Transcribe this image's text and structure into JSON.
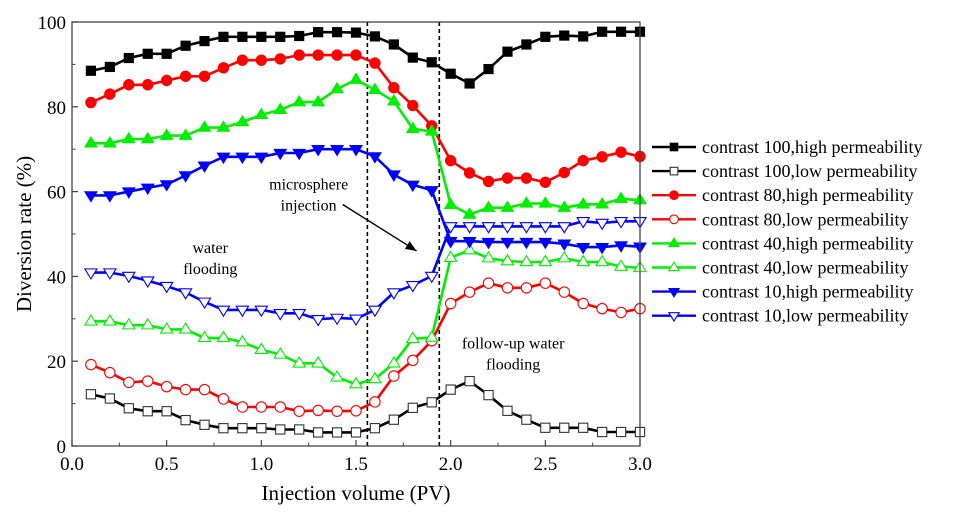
{
  "chart_data": {
    "type": "line",
    "title": "",
    "xlabel": "Injection volume (PV)",
    "ylabel": "Diversion rate (%)",
    "xlim": [
      0.0,
      3.0
    ],
    "ylim": [
      0,
      100
    ],
    "xticks": [
      "0.0",
      "0.5",
      "1.0",
      "1.5",
      "2.0",
      "2.5",
      "3.0"
    ],
    "xtick_values": [
      0.0,
      0.5,
      1.0,
      1.5,
      2.0,
      2.5,
      3.0
    ],
    "yticks": [
      "0",
      "20",
      "40",
      "60",
      "80",
      "100"
    ],
    "ytick_values": [
      0,
      20,
      40,
      60,
      80,
      100
    ],
    "grid": false,
    "legend_position": "right-outside",
    "x": [
      0.1,
      0.2,
      0.3,
      0.4,
      0.5,
      0.6,
      0.7,
      0.8,
      0.9,
      1.0,
      1.1,
      1.2,
      1.3,
      1.4,
      1.5,
      1.6,
      1.7,
      1.8,
      1.9,
      2.0,
      2.1,
      2.2,
      2.3,
      2.4,
      2.5,
      2.6,
      2.7,
      2.8,
      2.9,
      3.0
    ],
    "series": [
      {
        "name": "contrast 100,high permeability",
        "color": "#000000",
        "marker": "square",
        "filled": true,
        "values": [
          88.5,
          89.4,
          91.5,
          92.5,
          92.5,
          94.4,
          95.5,
          96.5,
          96.5,
          96.5,
          96.5,
          96.7,
          97.6,
          97.6,
          97.5,
          96.6,
          94.7,
          91.6,
          90.5,
          87.8,
          85.5,
          88.9,
          93.0,
          94.7,
          96.5,
          96.8,
          96.6,
          97.7,
          97.7,
          97.7
        ]
      },
      {
        "name": "contrast 100,low permeability",
        "color": "#000000",
        "marker": "square",
        "filled": false,
        "values": [
          12.2,
          11.2,
          8.9,
          8.2,
          8.2,
          6.1,
          5.0,
          4.2,
          4.2,
          4.2,
          3.9,
          3.9,
          3.2,
          3.2,
          3.2,
          4.2,
          6.2,
          9.0,
          10.3,
          13.3,
          15.3,
          12.0,
          8.3,
          6.2,
          4.3,
          4.3,
          4.3,
          3.3,
          3.3,
          3.3
        ]
      },
      {
        "name": "contrast 80,high permeability",
        "color": "#ff0000",
        "marker": "circle",
        "filled": true,
        "values": [
          81.0,
          83.0,
          85.2,
          85.2,
          86.2,
          87.2,
          87.2,
          89.2,
          91.0,
          91.0,
          91.3,
          92.2,
          92.2,
          92.2,
          92.2,
          90.3,
          84.5,
          80.3,
          75.5,
          67.3,
          64.4,
          62.4,
          63.2,
          63.2,
          62.2,
          64.5,
          67.3,
          68.2,
          69.3,
          68.3
        ]
      },
      {
        "name": "contrast 80,low permeability",
        "color": "#ff0000",
        "marker": "circle",
        "filled": false,
        "values": [
          19.2,
          17.3,
          15.0,
          15.3,
          14.0,
          13.3,
          13.3,
          11.1,
          9.2,
          9.2,
          9.2,
          8.2,
          8.4,
          8.2,
          8.3,
          10.4,
          16.5,
          20.2,
          24.8,
          33.6,
          36.3,
          38.4,
          37.3,
          37.3,
          38.4,
          36.3,
          33.6,
          32.4,
          31.5,
          32.4
        ]
      },
      {
        "name": "contrast 40,high permeability",
        "color": "#00ee00",
        "marker": "triangle-up",
        "filled": true,
        "values": [
          71.4,
          71.4,
          72.4,
          72.4,
          73.2,
          73.2,
          75.1,
          75.1,
          76.4,
          78.1,
          79.3,
          81.1,
          81.1,
          84.2,
          86.4,
          84.0,
          81.3,
          74.8,
          74.2,
          56.9,
          54.6,
          56.2,
          56.2,
          57.2,
          57.2,
          56.2,
          57.0,
          57.0,
          58.3,
          58.0
        ]
      },
      {
        "name": "contrast 40,low permeability",
        "color": "#00ee00",
        "marker": "triangle-up",
        "filled": false,
        "values": [
          29.4,
          29.4,
          28.5,
          28.5,
          27.5,
          27.5,
          25.5,
          25.5,
          24.5,
          22.7,
          21.6,
          19.5,
          19.5,
          16.2,
          14.6,
          15.8,
          19.5,
          25.3,
          25.6,
          44.4,
          46.2,
          44.3,
          43.6,
          43.4,
          43.4,
          44.3,
          43.4,
          43.4,
          42.3,
          42.0
        ]
      },
      {
        "name": "contrast 10,high permeability",
        "color": "#0000ff",
        "marker": "triangle-down",
        "filled": true,
        "values": [
          59.1,
          59.1,
          60.0,
          60.9,
          61.7,
          63.8,
          66.1,
          68.2,
          68.2,
          68.2,
          69.1,
          69.1,
          70.0,
          70.0,
          70.0,
          68.3,
          64.0,
          61.6,
          60.3,
          48.3,
          48.3,
          48.1,
          48.1,
          48.1,
          48.1,
          47.7,
          46.9,
          46.9,
          47.3,
          47.0
        ]
      },
      {
        "name": "contrast 10,low permeability",
        "color": "#0000ff",
        "marker": "triangle-down",
        "filled": false,
        "values": [
          40.9,
          40.9,
          40.1,
          39.0,
          37.7,
          36.2,
          34.0,
          32.1,
          32.1,
          32.1,
          31.3,
          31.3,
          29.9,
          30.2,
          30.0,
          32.1,
          36.2,
          37.9,
          40.1,
          51.8,
          51.8,
          51.8,
          51.8,
          51.8,
          51.8,
          51.8,
          53.0,
          52.6,
          53.0,
          53.0
        ]
      }
    ],
    "reference_lines": [
      {
        "axis": "x",
        "value": 1.56,
        "style": "dashed"
      },
      {
        "axis": "x",
        "value": 1.94,
        "style": "dashed"
      }
    ],
    "annotations": [
      {
        "lines": [
          "water",
          "flooding"
        ],
        "x": 0.73,
        "y": 45.5
      },
      {
        "lines": [
          "microsphere",
          "injection"
        ],
        "x": 1.25,
        "y": 60.5,
        "arrow_to": [
          1.82,
          46
        ]
      },
      {
        "lines": [
          "follow-up water",
          "flooding"
        ],
        "x": 2.33,
        "y": 23
      }
    ]
  }
}
